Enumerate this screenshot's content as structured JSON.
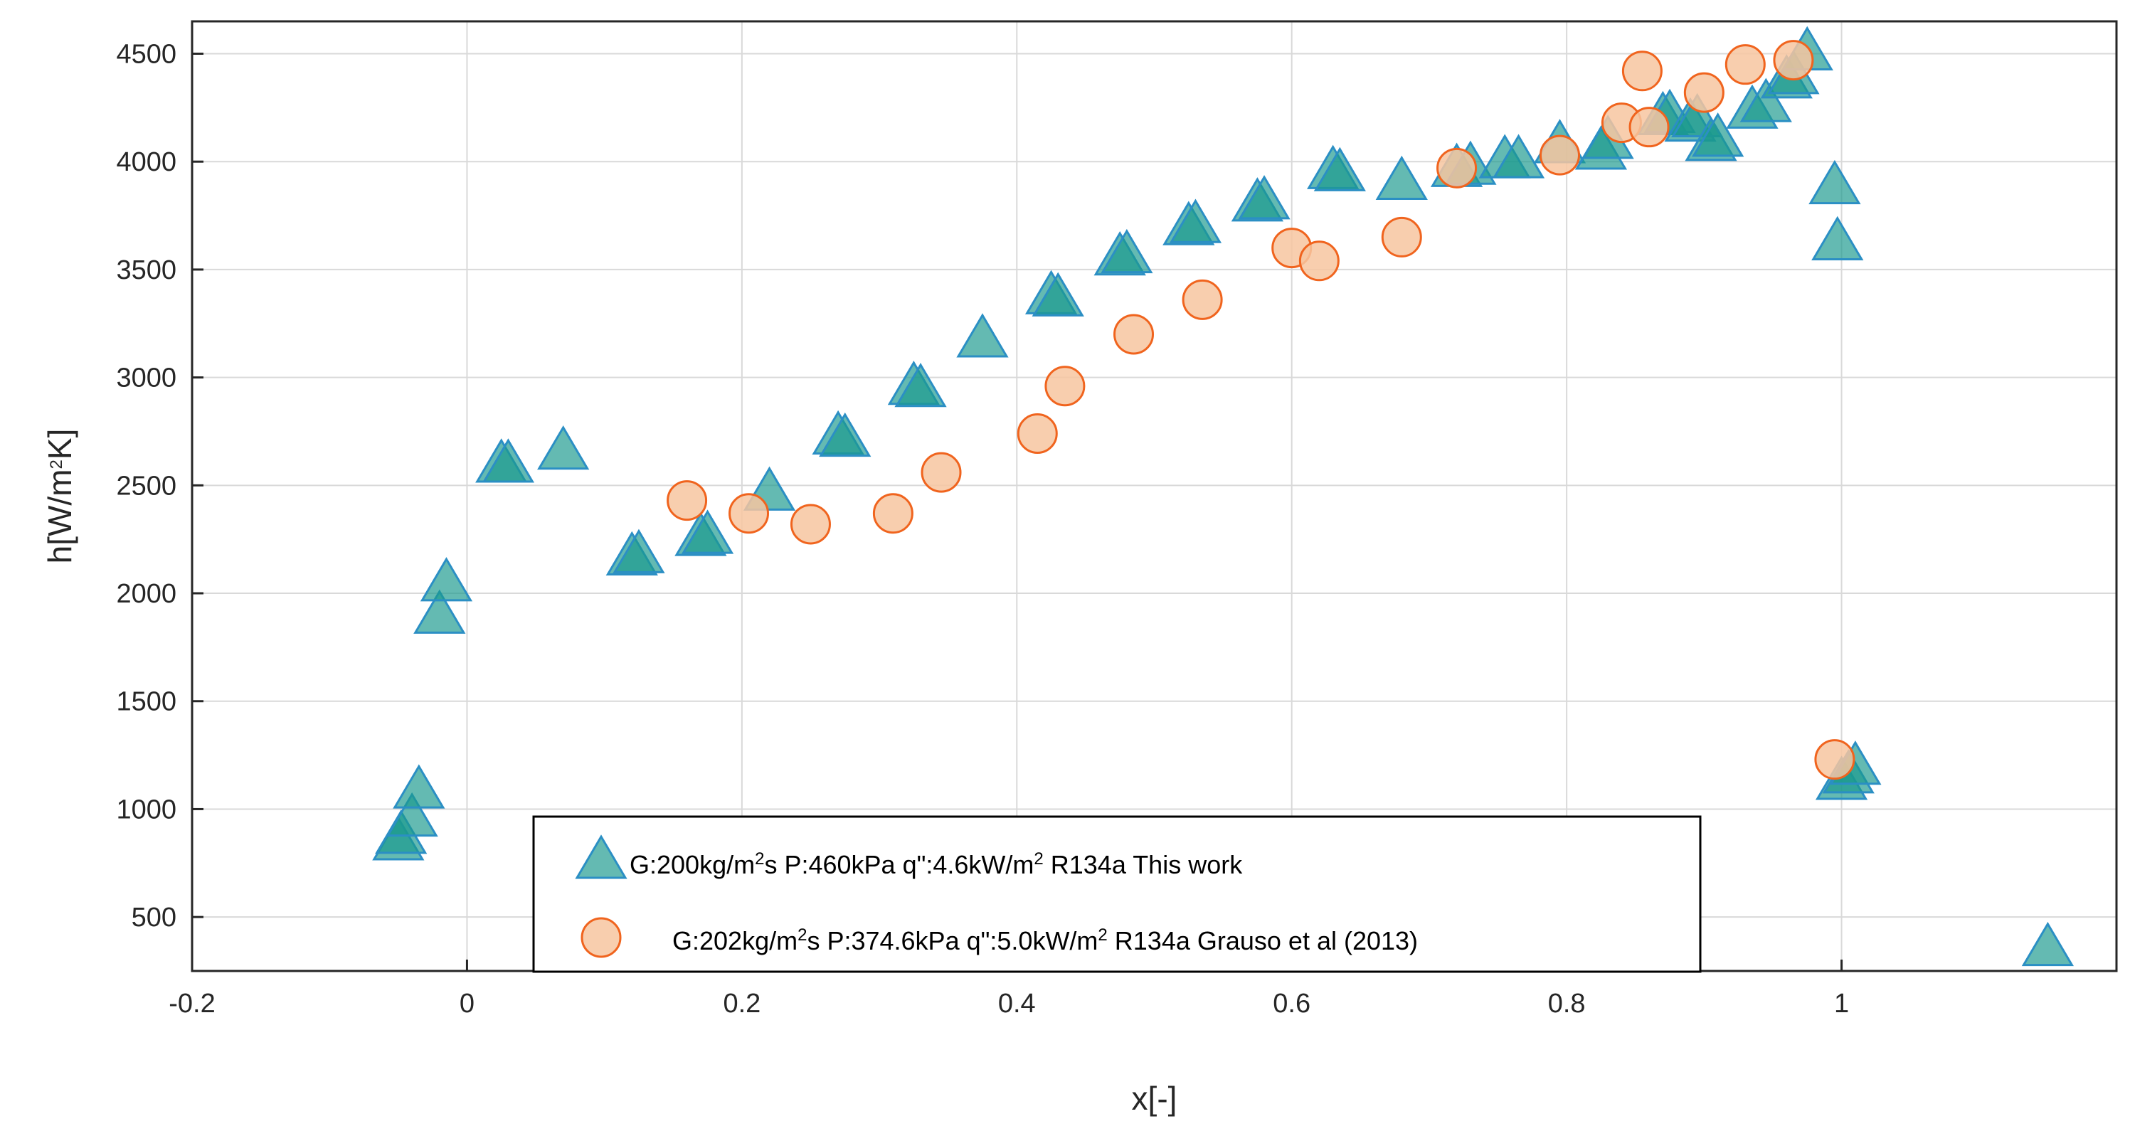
{
  "chart_data": {
    "type": "scatter",
    "title": "",
    "xlabel": "x[-]",
    "ylabel": {
      "base": "h[W/m",
      "exp": "2",
      "tail": "K]"
    },
    "xlim": [
      -0.2,
      1.2
    ],
    "ylim": [
      250,
      4650
    ],
    "grid": true,
    "legend_position": "bottom-center",
    "x_ticks": [
      -0.2,
      0,
      0.2,
      0.4,
      0.6,
      0.8,
      1
    ],
    "x_tick_labels": [
      "-0.2",
      "0",
      "0.2",
      "0.4",
      "0.6",
      "0.8",
      "1"
    ],
    "y_ticks": [
      500,
      1000,
      1500,
      2000,
      2500,
      3000,
      3500,
      4000,
      4500
    ],
    "y_tick_labels": [
      "500",
      "1000",
      "1500",
      "2000",
      "2500",
      "3000",
      "3500",
      "4000",
      "4500"
    ],
    "colors": {
      "triangle_fill": "#1a9a8e",
      "triangle_edge": "#2b8fc4",
      "circle_fill": "#f7c6a0",
      "circle_edge": "#f0641e",
      "grid": "#d9d9d9",
      "axis": "#262626"
    },
    "series": [
      {
        "name": "G:200kg/m2s P:460kPa q\":4.6kW/m2 R134a This work",
        "legend_parts": [
          "G:200kg/m",
          "2",
          "s P:460kPa q\":4.6kW/m",
          "2",
          " R134a This work"
        ],
        "marker": "triangle",
        "points": [
          [
            -0.05,
            840
          ],
          [
            -0.048,
            870
          ],
          [
            -0.04,
            950
          ],
          [
            -0.035,
            1080
          ],
          [
            -0.02,
            1890
          ],
          [
            -0.015,
            2040
          ],
          [
            0.025,
            2590
          ],
          [
            0.03,
            2590
          ],
          [
            0.07,
            2650
          ],
          [
            0.12,
            2160
          ],
          [
            0.125,
            2170
          ],
          [
            0.17,
            2250
          ],
          [
            0.175,
            2260
          ],
          [
            0.22,
            2460
          ],
          [
            0.27,
            2720
          ],
          [
            0.275,
            2710
          ],
          [
            0.325,
            2950
          ],
          [
            0.33,
            2940
          ],
          [
            0.375,
            3170
          ],
          [
            0.425,
            3370
          ],
          [
            0.43,
            3360
          ],
          [
            0.475,
            3550
          ],
          [
            0.48,
            3560
          ],
          [
            0.525,
            3690
          ],
          [
            0.53,
            3700
          ],
          [
            0.575,
            3800
          ],
          [
            0.58,
            3810
          ],
          [
            0.63,
            3950
          ],
          [
            0.635,
            3940
          ],
          [
            0.68,
            3900
          ],
          [
            0.72,
            3960
          ],
          [
            0.73,
            3970
          ],
          [
            0.755,
            4000
          ],
          [
            0.765,
            4000
          ],
          [
            0.795,
            4070
          ],
          [
            0.825,
            4040
          ],
          [
            0.83,
            4090
          ],
          [
            0.87,
            4200
          ],
          [
            0.875,
            4210
          ],
          [
            0.89,
            4170
          ],
          [
            0.895,
            4190
          ],
          [
            0.905,
            4080
          ],
          [
            0.91,
            4100
          ],
          [
            0.935,
            4230
          ],
          [
            0.945,
            4260
          ],
          [
            0.96,
            4370
          ],
          [
            0.965,
            4390
          ],
          [
            0.975,
            4500
          ],
          [
            0.995,
            3880
          ],
          [
            0.997,
            3620
          ],
          [
            1.0,
            1120
          ],
          [
            1.005,
            1150
          ],
          [
            1.01,
            1190
          ],
          [
            1.15,
            350
          ]
        ]
      },
      {
        "name": "G:202kg/m2s P:374.6kPa q\":5.0kW/m2 R134a Grauso et al (2013)",
        "legend_parts": [
          "G:202kg/m",
          "2",
          "s P:374.6kPa q\":5.0kW/m",
          "2",
          " R134a Grauso et al (2013)"
        ],
        "marker": "circle",
        "points": [
          [
            0.16,
            2430
          ],
          [
            0.205,
            2370
          ],
          [
            0.25,
            2320
          ],
          [
            0.31,
            2370
          ],
          [
            0.345,
            2560
          ],
          [
            0.415,
            2740
          ],
          [
            0.435,
            2960
          ],
          [
            0.485,
            3200
          ],
          [
            0.535,
            3360
          ],
          [
            0.6,
            3600
          ],
          [
            0.62,
            3540
          ],
          [
            0.68,
            3650
          ],
          [
            0.72,
            3970
          ],
          [
            0.795,
            4030
          ],
          [
            0.84,
            4180
          ],
          [
            0.855,
            4420
          ],
          [
            0.86,
            4160
          ],
          [
            0.9,
            4320
          ],
          [
            0.93,
            4450
          ],
          [
            0.965,
            4470
          ],
          [
            0.995,
            1230
          ]
        ]
      }
    ]
  }
}
